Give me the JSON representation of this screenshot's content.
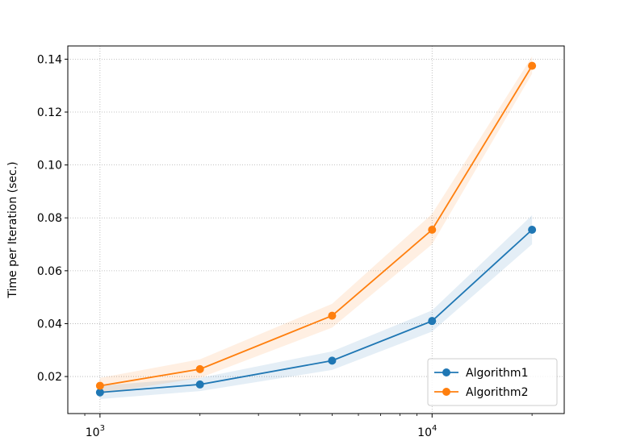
{
  "chart_data": {
    "type": "line",
    "xscale": "log",
    "xlim": [
      800,
      25000
    ],
    "ylim": [
      0.006,
      0.145
    ],
    "ylabel": "Time per Iteration (sec.)",
    "xlabel": "",
    "grid": true,
    "legend_position": "lower-right",
    "x_ticks": [
      {
        "value": 1000,
        "base": "10",
        "exp": "3"
      },
      {
        "value": 10000,
        "base": "10",
        "exp": "4"
      }
    ],
    "y_ticks": [
      {
        "value": 0.02,
        "label": "0.02"
      },
      {
        "value": 0.04,
        "label": "0.04"
      },
      {
        "value": 0.06,
        "label": "0.06"
      },
      {
        "value": 0.08,
        "label": "0.08"
      },
      {
        "value": 0.1,
        "label": "0.10"
      },
      {
        "value": 0.12,
        "label": "0.12"
      },
      {
        "value": 0.14,
        "label": "0.14"
      }
    ],
    "x": [
      1000,
      2000,
      5000,
      10000,
      20000
    ],
    "series": [
      {
        "name": "Algorithm1",
        "color": "#1f77b4",
        "values": [
          0.014,
          0.017,
          0.026,
          0.041,
          0.0755
        ],
        "lower": [
          0.0115,
          0.0145,
          0.0225,
          0.037,
          0.07
        ],
        "upper": [
          0.0165,
          0.0195,
          0.0295,
          0.045,
          0.081
        ]
      },
      {
        "name": "Algorithm2",
        "color": "#ff7f0e",
        "values": [
          0.0165,
          0.0228,
          0.043,
          0.0755,
          0.1375
        ],
        "lower": [
          0.0135,
          0.0195,
          0.0385,
          0.07,
          0.1345
        ],
        "upper": [
          0.0195,
          0.0265,
          0.0475,
          0.0815,
          0.141
        ]
      }
    ]
  }
}
